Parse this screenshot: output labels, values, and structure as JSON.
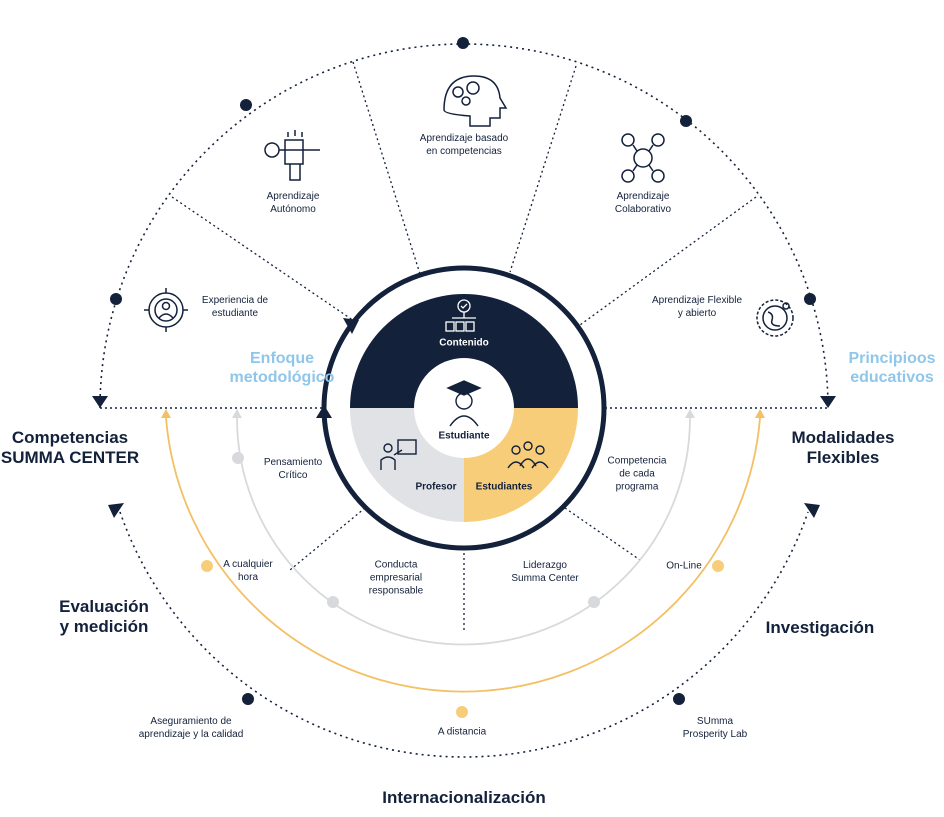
{
  "center": {
    "top_label": "Contenido",
    "middle_label": "Estudiante",
    "left_label": "Profesor",
    "right_label": "Estudiantes"
  },
  "top_segments": [
    {
      "label": "Experiencia de\nestudiante",
      "icon": "target-person-icon"
    },
    {
      "label": "Aprendizaje\nAutónomo",
      "icon": "hand-key-icon"
    },
    {
      "label": "Aprendizaje basado\nen competencias",
      "icon": "head-gears-icon"
    },
    {
      "label": "Aprendizaje\nColaborativo",
      "icon": "network-people-icon"
    },
    {
      "label": "Aprendizaje Flexible\ny abierto",
      "icon": "globe-route-icon"
    }
  ],
  "bottom_segments": [
    {
      "label": "Pensamiento\nCrítico"
    },
    {
      "label": "Conducta\nempresarial\nresponsable"
    },
    {
      "label": "Liderazgo\nSumma Center"
    },
    {
      "label": "Competencia\nde cada\nprograma"
    }
  ],
  "side_headings": {
    "enfoque": "Enfoque\nmetodológico",
    "principios": "Principioos\neducativos"
  },
  "outer_labels": {
    "competencias": "Competencias\nSUMMA CENTER",
    "modalidades": "Modalidades\nFlexibles",
    "evaluacion": "Evaluación\ny medición",
    "investigacion": "Investigación",
    "internacionalizacion": "Internacionalización"
  },
  "arc_labels": {
    "cualquier_hora": "A cualquier\nhora",
    "online": "On-Line",
    "distancia": "A distancia",
    "aseguramiento": "Aseguramiento de\naprendizaje y la calidad",
    "prosperity": "SUmma\nProsperity Lab"
  },
  "colors": {
    "navy": "#13213b",
    "gold": "#f8cd7a",
    "gold_line": "#f3c065",
    "gray_fill": "#e1e2e5",
    "gray_line": "#d8d9dc",
    "light_blue": "#8fc6ea"
  }
}
